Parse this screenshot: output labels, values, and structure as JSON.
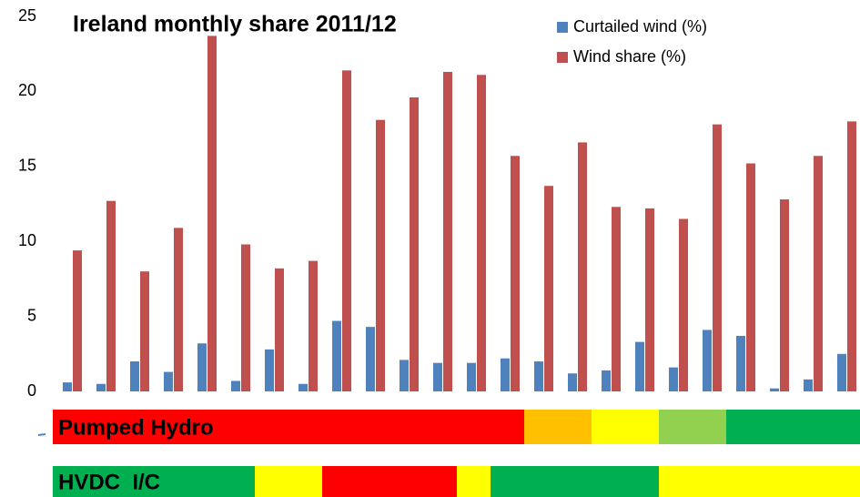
{
  "chart_data": {
    "type": "bar",
    "title": "Ireland monthly share 2011/12",
    "categories": [
      null,
      null,
      null,
      null,
      null,
      null,
      null,
      null,
      null,
      null,
      null,
      null,
      null,
      null,
      null,
      null,
      null,
      null,
      null,
      null,
      null,
      null,
      null,
      null
    ],
    "series": [
      {
        "name": "Curtailed wind (%)",
        "color": "#4f81bd",
        "values": [
          0.6,
          0.5,
          2.0,
          1.3,
          3.2,
          0.7,
          2.8,
          0.5,
          4.7,
          4.3,
          2.1,
          1.9,
          1.9,
          2.2,
          2.0,
          1.2,
          1.4,
          3.3,
          1.6,
          4.1,
          3.7,
          0.2,
          0.8,
          2.5
        ]
      },
      {
        "name": "Wind share (%)",
        "color": "#c0504d",
        "values": [
          9.4,
          12.7,
          8.0,
          10.9,
          23.7,
          9.8,
          8.2,
          8.7,
          21.4,
          18.1,
          19.6,
          21.3,
          21.1,
          15.7,
          13.7,
          16.6,
          12.3,
          12.2,
          11.5,
          17.8,
          15.2,
          12.8,
          15.7,
          18.0
        ]
      }
    ],
    "ylim": [
      0,
      25
    ],
    "yticks": [
      0,
      5,
      10,
      15,
      20,
      25
    ],
    "grid": false,
    "legend": "top-right",
    "bands": [
      {
        "label": "Pumped Hydro",
        "segments": [
          {
            "color": "#ff0000",
            "months": 14
          },
          {
            "color": "#ffc000",
            "months": 2
          },
          {
            "color": "#ffff00",
            "months": 2
          },
          {
            "color": "#92d050",
            "months": 2
          },
          {
            "color": "#00b050",
            "months": 4
          }
        ]
      },
      {
        "label": "HVDC  I/C",
        "segments": [
          {
            "color": "#00b050",
            "months": 6
          },
          {
            "color": "#ffff00",
            "months": 2
          },
          {
            "color": "#ff0000",
            "months": 4
          },
          {
            "color": "#ffff00",
            "months": 1
          },
          {
            "color": "#00b050",
            "months": 5
          },
          {
            "color": "#ffff00",
            "months": 6
          }
        ]
      }
    ]
  }
}
